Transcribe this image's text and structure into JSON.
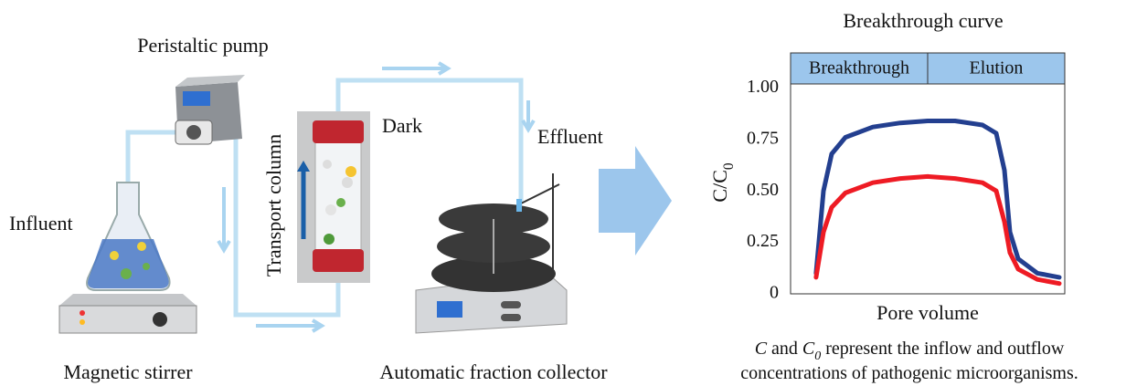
{
  "labels": {
    "pump": "Peristaltic pump",
    "influent": "Influent",
    "stirrer": "Magnetic stirrer",
    "column": "Transport column",
    "dark": "Dark",
    "effluent": "Effluent",
    "collector": "Automatic fraction collector"
  },
  "chart_data": {
    "type": "line",
    "title": "Breakthrough curve",
    "phases": [
      "Breakthrough",
      "Elution"
    ],
    "ylabel": [
      {
        "text": "C/C"
      },
      {
        "text": "0",
        "sub": true
      }
    ],
    "xlabel": "Pore volume",
    "xlim": [
      0,
      10
    ],
    "ylim": [
      0,
      1.17
    ],
    "yticks": [
      0,
      0.25,
      {
        "value": 0.5,
        "label": "0.50"
      },
      0.75,
      {
        "value": 1,
        "label": "1.00"
      }
    ],
    "x": [
      0.93,
      1.2,
      1.5,
      2,
      3,
      4,
      5,
      6,
      7,
      7.5,
      7.8,
      8,
      8.3,
      9,
      9.8
    ],
    "series": [
      {
        "color": "#233f8f",
        "values": [
          0.1,
          0.5,
          0.68,
          0.76,
          0.81,
          0.83,
          0.84,
          0.84,
          0.82,
          0.78,
          0.6,
          0.3,
          0.17,
          0.1,
          0.08
        ]
      },
      {
        "color": "#ee1b24",
        "values": [
          0.08,
          0.3,
          0.42,
          0.49,
          0.54,
          0.56,
          0.57,
          0.56,
          0.54,
          0.5,
          0.35,
          0.2,
          0.12,
          0.07,
          0.05
        ]
      }
    ],
    "caption": [
      [
        {
          "text": "C",
          "italic": true
        },
        {
          "text": " and "
        },
        {
          "text": "C",
          "italic": true
        },
        {
          "text": "0",
          "italic": true,
          "sub": true
        },
        {
          "text": " represent the inflow and outflow"
        }
      ],
      [
        {
          "text": "concentrations of pathogenic microorganisms."
        }
      ]
    ]
  }
}
